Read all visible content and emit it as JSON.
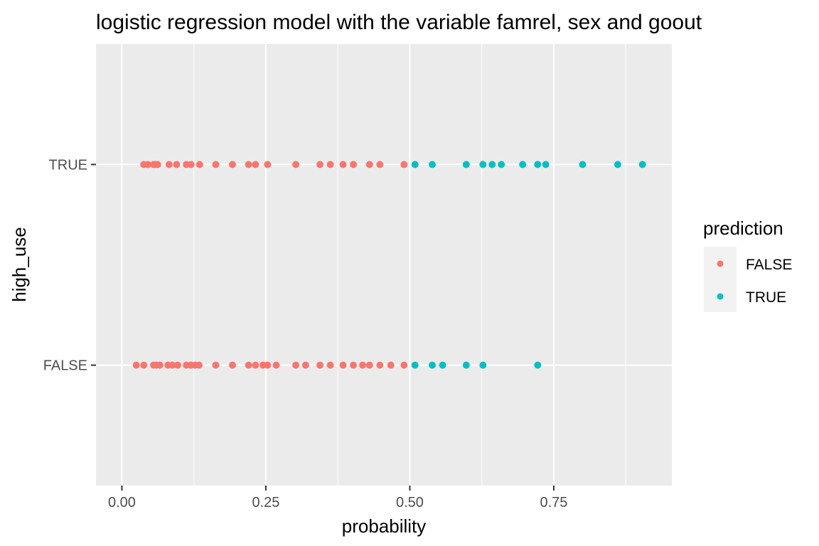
{
  "chart_data": {
    "type": "scatter",
    "title": "logistic regression model with the variable famrel, sex and goout",
    "xlabel": "probability",
    "ylabel": "high_use",
    "xlim": [
      -0.045,
      0.955
    ],
    "x_ticks": [
      {
        "value": 0.0,
        "label": "0.00"
      },
      {
        "value": 0.25,
        "label": "0.25"
      },
      {
        "value": 0.5,
        "label": "0.50"
      },
      {
        "value": 0.75,
        "label": "0.75"
      }
    ],
    "y_categories": [
      "FALSE",
      "TRUE"
    ],
    "grid": true,
    "legend": {
      "title": "prediction",
      "placement": "right",
      "entries": [
        {
          "label": "FALSE",
          "color": "#F8766D"
        },
        {
          "label": "TRUE",
          "color": "#00BFC4"
        }
      ]
    },
    "colors": {
      "FALSE": "#F8766D",
      "TRUE": "#00BFC4"
    },
    "series": [
      {
        "high_use": "TRUE",
        "x": [
          0.038,
          0.045,
          0.055,
          0.058,
          0.062,
          0.082,
          0.095,
          0.112,
          0.12,
          0.135,
          0.163,
          0.192,
          0.22,
          0.232,
          0.253,
          0.302,
          0.344,
          0.362,
          0.384,
          0.402,
          0.43,
          0.448,
          0.49,
          0.509,
          0.539,
          0.598,
          0.627,
          0.643,
          0.659,
          0.696,
          0.722,
          0.736,
          0.8,
          0.861,
          0.904
        ],
        "prediction": [
          "FALSE",
          "FALSE",
          "FALSE",
          "FALSE",
          "FALSE",
          "FALSE",
          "FALSE",
          "FALSE",
          "FALSE",
          "FALSE",
          "FALSE",
          "FALSE",
          "FALSE",
          "FALSE",
          "FALSE",
          "FALSE",
          "FALSE",
          "FALSE",
          "FALSE",
          "FALSE",
          "FALSE",
          "FALSE",
          "FALSE",
          "TRUE",
          "TRUE",
          "TRUE",
          "TRUE",
          "TRUE",
          "TRUE",
          "TRUE",
          "TRUE",
          "TRUE",
          "TRUE",
          "TRUE",
          "TRUE"
        ]
      },
      {
        "high_use": "FALSE",
        "x": [
          0.025,
          0.038,
          0.055,
          0.06,
          0.066,
          0.08,
          0.088,
          0.097,
          0.112,
          0.12,
          0.127,
          0.134,
          0.163,
          0.192,
          0.22,
          0.232,
          0.245,
          0.253,
          0.268,
          0.302,
          0.319,
          0.344,
          0.362,
          0.384,
          0.402,
          0.418,
          0.43,
          0.448,
          0.467,
          0.49,
          0.509,
          0.539,
          0.557,
          0.598,
          0.627,
          0.722
        ],
        "prediction": [
          "FALSE",
          "FALSE",
          "FALSE",
          "FALSE",
          "FALSE",
          "FALSE",
          "FALSE",
          "FALSE",
          "FALSE",
          "FALSE",
          "FALSE",
          "FALSE",
          "FALSE",
          "FALSE",
          "FALSE",
          "FALSE",
          "FALSE",
          "FALSE",
          "FALSE",
          "FALSE",
          "FALSE",
          "FALSE",
          "FALSE",
          "FALSE",
          "FALSE",
          "FALSE",
          "FALSE",
          "FALSE",
          "FALSE",
          "FALSE",
          "TRUE",
          "TRUE",
          "TRUE",
          "TRUE",
          "TRUE",
          "TRUE"
        ]
      }
    ]
  }
}
